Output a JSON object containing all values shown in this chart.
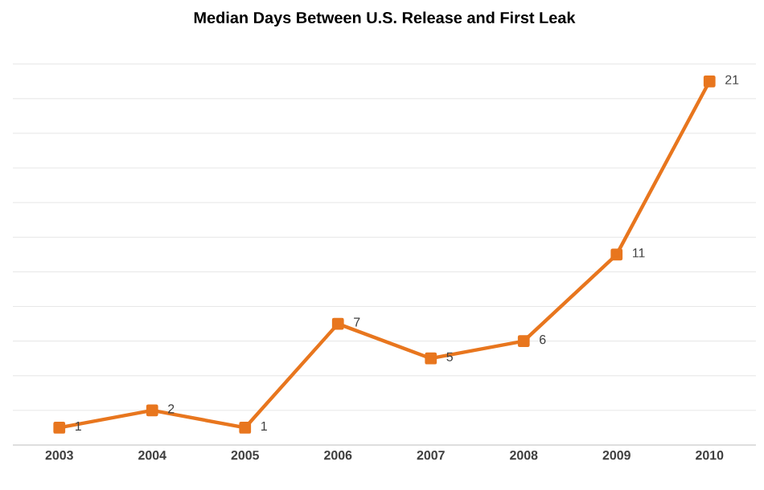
{
  "chart_data": {
    "type": "line",
    "title": "Median Days Between U.S. Release and First Leak",
    "categories": [
      "2003",
      "2004",
      "2005",
      "2006",
      "2007",
      "2008",
      "2009",
      "2010"
    ],
    "series": [
      {
        "color": "#e8761e",
        "values": [
          1,
          2,
          1,
          7,
          5,
          6,
          11,
          21
        ]
      }
    ],
    "tick_labels": "x",
    "grid": "y",
    "marker": "square",
    "line_style": "solid",
    "data_labels": true
  }
}
